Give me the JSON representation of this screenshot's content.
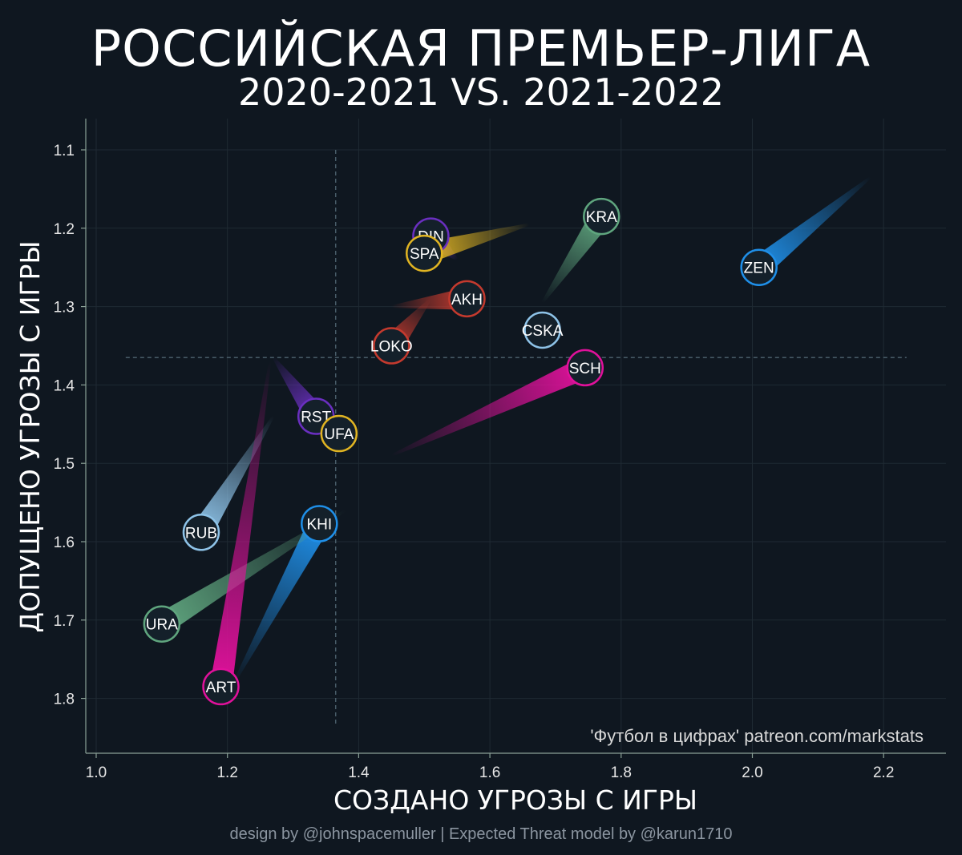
{
  "header": {
    "title": "РОССИЙСКАЯ ПРЕМЬЕР-ЛИГА",
    "subtitle": "2020-2021 VS. 2021-2022"
  },
  "footer": "design by @johnspacemuller | Expected Threat model by @karun1710",
  "chart_data": {
    "type": "scatter",
    "title": "РОССИЙСКАЯ ПРЕМЬЕР-ЛИГА",
    "subtitle": "2020-2021 VS. 2021-2022",
    "xlabel": "СОЗДАНО УГРОЗЫ С ИГРЫ",
    "ylabel": "ДОПУЩЕНО УГРОЗЫ С ИГРЫ",
    "xlim": [
      0.98,
      2.3
    ],
    "ylim": [
      1.06,
      1.87
    ],
    "y_inverted": true,
    "grid": true,
    "x_ticks": [
      1.0,
      1.2,
      1.4,
      1.6,
      1.8,
      2.0,
      2.2
    ],
    "x_tick_labels": [
      "1.0",
      "1.2",
      "1.4",
      "1.6",
      "1.8",
      "2.0",
      "2.2"
    ],
    "y_ticks": [
      1.1,
      1.2,
      1.3,
      1.4,
      1.5,
      1.6,
      1.7,
      1.8
    ],
    "y_tick_labels": [
      "1.1",
      "1.2",
      "1.3",
      "1.4",
      "1.5",
      "1.6",
      "1.7",
      "1.8"
    ],
    "average_x": 1.365,
    "average_y": 1.365,
    "annotation": "'Футбол в цифрах' patreon.com/markstats",
    "teams": [
      {
        "label": "ZEN",
        "prev": [
          2.18,
          1.135
        ],
        "curr": [
          2.01,
          1.25
        ],
        "color": "#1f8fe8"
      },
      {
        "label": "KRA",
        "prev": [
          1.68,
          1.295
        ],
        "curr": [
          1.77,
          1.185
        ],
        "color": "#5fa57e"
      },
      {
        "label": "DIN",
        "prev": [
          1.55,
          1.24
        ],
        "curr": [
          1.51,
          1.21
        ],
        "color": "#6a2fc0"
      },
      {
        "label": "SPA",
        "prev": [
          1.66,
          1.195
        ],
        "curr": [
          1.5,
          1.232
        ],
        "color": "#e0b422"
      },
      {
        "label": "AKH",
        "prev": [
          1.45,
          1.3
        ],
        "curr": [
          1.565,
          1.29
        ],
        "color": "#c43a2e"
      },
      {
        "label": "CSKA",
        "prev": [
          1.68,
          1.33
        ],
        "curr": [
          1.68,
          1.33
        ],
        "color": "#8ec3e8"
      },
      {
        "label": "LOKO",
        "prev": [
          1.51,
          1.29
        ],
        "curr": [
          1.45,
          1.35
        ],
        "color": "#c43a2e"
      },
      {
        "label": "SCH",
        "prev": [
          1.45,
          1.49
        ],
        "curr": [
          1.745,
          1.378
        ],
        "color": "#e0119b"
      },
      {
        "label": "RST",
        "prev": [
          1.27,
          1.365
        ],
        "curr": [
          1.335,
          1.44
        ],
        "color": "#6a2fc0"
      },
      {
        "label": "UFA",
        "prev": [
          1.37,
          1.46
        ],
        "curr": [
          1.37,
          1.462
        ],
        "color": "#e0b422"
      },
      {
        "label": "RUB",
        "prev": [
          1.27,
          1.44
        ],
        "curr": [
          1.16,
          1.588
        ],
        "color": "#8ec3e8"
      },
      {
        "label": "KHI",
        "prev": [
          1.21,
          1.78
        ],
        "curr": [
          1.34,
          1.577
        ],
        "color": "#1f8fe8"
      },
      {
        "label": "URA",
        "prev": [
          1.38,
          1.56
        ],
        "curr": [
          1.1,
          1.705
        ],
        "color": "#5fa57e"
      },
      {
        "label": "ART",
        "prev": [
          1.265,
          1.37
        ],
        "curr": [
          1.19,
          1.785
        ],
        "color": "#e0119b"
      }
    ]
  }
}
